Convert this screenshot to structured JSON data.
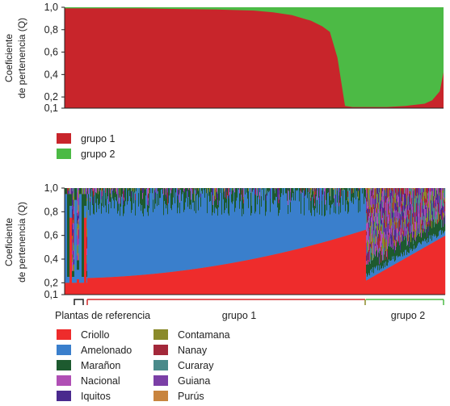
{
  "chart_data": [
    {
      "type": "area",
      "ylabel_line1": "Coeficiente",
      "ylabel_line2": "de pertenencia (Q)",
      "yticks": [
        "1,0",
        "0,8",
        "0,6",
        "0,4",
        "0,2",
        "0,1"
      ],
      "ylim": [
        0.1,
        1.0
      ],
      "x": [
        0,
        0.05,
        0.1,
        0.2,
        0.3,
        0.4,
        0.5,
        0.55,
        0.6,
        0.65,
        0.68,
        0.7,
        0.72,
        0.74,
        0.76,
        0.78,
        0.8,
        0.85,
        0.9,
        0.95,
        0.97,
        0.99,
        1.0
      ],
      "series": [
        {
          "name": "grupo 1",
          "color": "#c8252b",
          "values": [
            0.99,
            0.99,
            0.99,
            0.99,
            0.985,
            0.98,
            0.97,
            0.955,
            0.93,
            0.88,
            0.83,
            0.78,
            0.55,
            0.12,
            0.11,
            0.11,
            0.11,
            0.11,
            0.12,
            0.14,
            0.17,
            0.25,
            0.42
          ]
        },
        {
          "name": "grupo 2",
          "color": "#4cba45"
        }
      ],
      "legend": [
        {
          "label": "grupo 1",
          "color": "#c8252b"
        },
        {
          "label": "grupo 2",
          "color": "#4cba45"
        }
      ]
    },
    {
      "type": "area",
      "ylabel_line1": "Coeficiente",
      "ylabel_line2": "de pertenencia (Q)",
      "yticks": [
        "1,0",
        "0,8",
        "0,6",
        "0,4",
        "0,2",
        "0,1"
      ],
      "ylim": [
        0.1,
        1.0
      ],
      "groups": [
        "Plantas de referencia",
        "grupo 1",
        "grupo 2"
      ],
      "series": [
        {
          "name": "Criollo",
          "color": "#ee2c2c"
        },
        {
          "name": "Amelonado",
          "color": "#3a7fcc"
        },
        {
          "name": "Marañon",
          "color": "#1d5a2f"
        },
        {
          "name": "Nacional",
          "color": "#b04fb5"
        },
        {
          "name": "Iquitos",
          "color": "#4a2a8e"
        },
        {
          "name": "Contamana",
          "color": "#8a8a2a"
        },
        {
          "name": "Nanay",
          "color": "#a3283a"
        },
        {
          "name": "Curaray",
          "color": "#4a8a8a"
        },
        {
          "name": "Guiana",
          "color": "#7b3fa6"
        },
        {
          "name": "Purús",
          "color": "#c8843e"
        }
      ]
    }
  ]
}
